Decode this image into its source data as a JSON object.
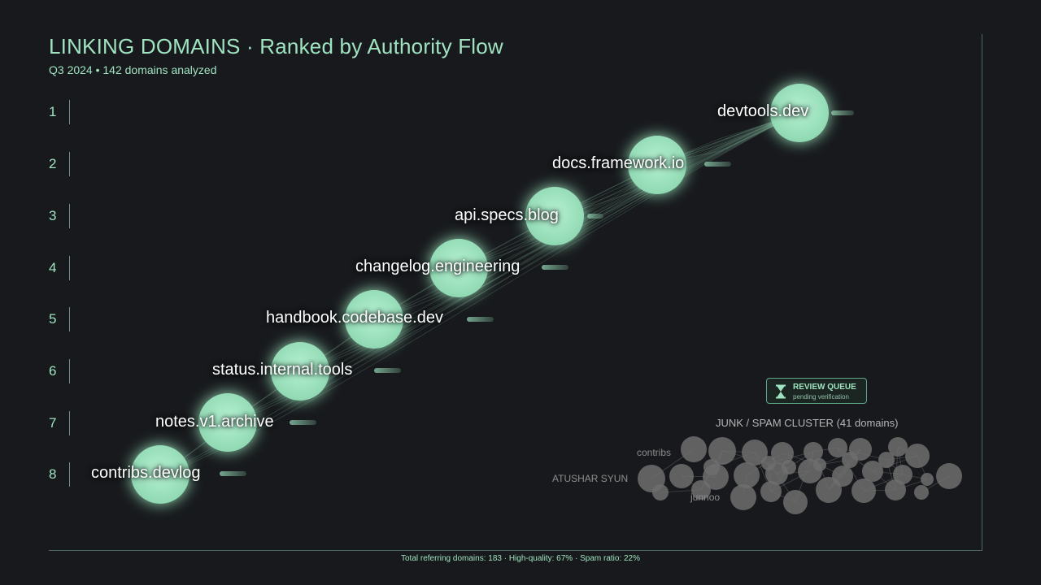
{
  "header": {
    "title": "LINKING DOMAINS · Ranked by Authority Flow",
    "subtitle": "Q3 2024 • 142 domains analyzed"
  },
  "ranks": [
    "1",
    "2",
    "3",
    "4",
    "5",
    "6",
    "7",
    "8"
  ],
  "domains": [
    {
      "rank": 1,
      "name": "devtools.dev"
    },
    {
      "rank": 2,
      "name": "docs.framework.io"
    },
    {
      "rank": 3,
      "name": "api.specs.blog"
    },
    {
      "rank": 4,
      "name": "changelog.engineering"
    },
    {
      "rank": 5,
      "name": "handbook.codebase.dev"
    },
    {
      "rank": 6,
      "name": "status.internal.tools"
    },
    {
      "rank": 7,
      "name": "notes.v1.archive"
    },
    {
      "rank": 8,
      "name": "contribs.devlog"
    }
  ],
  "review_queue": {
    "title": "REVIEW QUEUE",
    "subtitle": "pending verification",
    "icon": "hourglass-icon"
  },
  "spam_cluster": {
    "title": "JUNK / SPAM CLUSTER",
    "count": "(41 domains)",
    "labels": [
      "contribs",
      "ATUSHAR SYUN",
      "junnoo"
    ]
  },
  "footer": {
    "text": "Total referring domains: 183 · High-quality: 67% · Spam ratio: 22%"
  },
  "colors": {
    "accent": "#9fe3c0",
    "node": "#a7ecc8",
    "spam": "#6f6f6f",
    "background": "#17191c"
  }
}
